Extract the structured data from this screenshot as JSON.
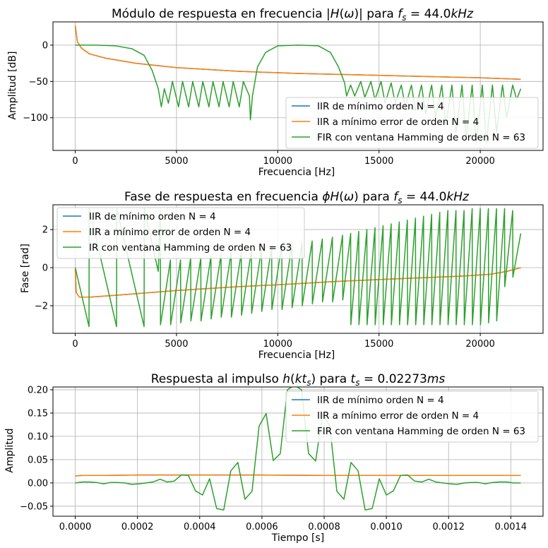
{
  "colors": {
    "s1": "#1f77b4",
    "s2": "#ff7f0e",
    "s3": "#2ca02c",
    "grid": "#b0b0b0"
  },
  "chart_data": [
    {
      "type": "line",
      "title": "Módulo de respuesta en frecuencia |H(ω)| para f_s = 44.0kHz",
      "title_parts": [
        "Módulo de respuesta en frecuencia |",
        "H",
        "(",
        "ω",
        ")| para ",
        "f",
        "s",
        " = 44.0",
        "kHz"
      ],
      "xlabel": "Frecuencia [Hz]",
      "ylabel": "Amplitud [dB]",
      "xlim": [
        -1100,
        23100
      ],
      "ylim": [
        -145,
        32
      ],
      "xticks": [
        0,
        5000,
        10000,
        15000,
        20000
      ],
      "xtick_labels": [
        "0",
        "5000",
        "10000",
        "15000",
        "20000"
      ],
      "yticks": [
        0,
        -50,
        -100
      ],
      "ytick_labels": [
        "0",
        "−50",
        "−100"
      ],
      "grid": true,
      "legend_position": "bottom-right",
      "series": [
        {
          "name": "IIR de mínimo orden N = 4",
          "color": "#1f77b4",
          "x": [
            0,
            100,
            300,
            700,
            1500,
            3000,
            5000,
            8000,
            11000,
            14000,
            17000,
            20000,
            22000
          ],
          "y": [
            27,
            5,
            -4,
            -12,
            -18,
            -25,
            -31,
            -36,
            -39,
            -41,
            -43,
            -45,
            -47
          ]
        },
        {
          "name": "IIR a mínimo error de orden N = 4",
          "color": "#ff7f0e",
          "x": [
            0,
            100,
            300,
            700,
            1500,
            3000,
            5000,
            8000,
            11000,
            14000,
            17000,
            20000,
            22000
          ],
          "y": [
            27,
            5,
            -4,
            -12,
            -18,
            -25,
            -31,
            -36,
            -39,
            -41,
            -43,
            -45,
            -47
          ]
        },
        {
          "name": "FIR con ventana Hamming de orden N = 63",
          "color": "#2ca02c",
          "x": [
            0,
            1000,
            2000,
            2800,
            3400,
            3800,
            4100,
            4250,
            4400,
            4600,
            4800,
            5100,
            5300,
            5600,
            5800,
            6100,
            6300,
            6600,
            6800,
            7100,
            7300,
            7600,
            7800,
            8100,
            8300,
            8600,
            8650,
            8750,
            9000,
            9400,
            10000,
            11000,
            12000,
            12600,
            13000,
            13300,
            13400,
            13600,
            13800,
            14100,
            14300,
            14600,
            14800,
            15100,
            15300,
            15600,
            15800,
            16100,
            16300,
            16600,
            16800,
            17100,
            17300,
            17600,
            17800,
            18100,
            18300,
            18600,
            18800,
            19100,
            19300,
            19600,
            19800,
            20100,
            20300,
            20600,
            20800,
            21100,
            21300,
            21600,
            21800,
            22000
          ],
          "y": [
            0,
            0,
            -1,
            -5,
            -14,
            -35,
            -60,
            -85,
            -60,
            -80,
            -50,
            -85,
            -50,
            -85,
            -50,
            -85,
            -50,
            -85,
            -50,
            -85,
            -50,
            -85,
            -50,
            -85,
            -50,
            -70,
            -103,
            -70,
            -30,
            -10,
            -1,
            0,
            -1,
            -10,
            -30,
            -52,
            -70,
            -55,
            -70,
            -50,
            -72,
            -50,
            -75,
            -50,
            -80,
            -52,
            -80,
            -55,
            -85,
            -55,
            -90,
            -55,
            -95,
            -55,
            -100,
            -55,
            -110,
            -55,
            -120,
            -55,
            -130,
            -55,
            -135,
            -55,
            -135,
            -55,
            -120,
            -55,
            -100,
            -55,
            -75,
            -60
          ]
        }
      ]
    },
    {
      "type": "line",
      "title": "Fase de respuesta en frecuencia ϕH(ω) para f_s = 44.0kHz",
      "title_parts": [
        "Fase de respuesta en frecuencia ",
        "ϕH",
        "(",
        "ω",
        ") para ",
        "f",
        "s",
        " = 44.0",
        "kHz"
      ],
      "xlabel": "Frecuencia [Hz]",
      "ylabel": "Fase [rad]",
      "xlim": [
        -1100,
        23100
      ],
      "ylim": [
        -3.45,
        3.3
      ],
      "xticks": [
        0,
        5000,
        10000,
        15000,
        20000
      ],
      "xtick_labels": [
        "0",
        "5000",
        "10000",
        "15000",
        "20000"
      ],
      "yticks": [
        2,
        0,
        -2
      ],
      "ytick_labels": [
        "2",
        "0",
        "−2"
      ],
      "grid": true,
      "legend_position": "top-left",
      "series": [
        {
          "name": "IIR de mínimo orden N = 4",
          "color": "#1f77b4",
          "x": [
            0,
            50,
            200,
            700,
            2000,
            5000,
            8000,
            10000,
            13000,
            16000,
            19000,
            20500,
            21300,
            22000
          ],
          "y": [
            -0.1,
            -1.3,
            -1.55,
            -1.55,
            -1.45,
            -1.2,
            -1.0,
            -0.9,
            -0.72,
            -0.58,
            -0.45,
            -0.35,
            -0.2,
            0
          ]
        },
        {
          "name": "IIR a mínimo error de orden N = 4",
          "color": "#ff7f0e",
          "x": [
            0,
            50,
            200,
            700,
            2000,
            5000,
            8000,
            10000,
            13000,
            16000,
            19000,
            20500,
            21300,
            22000
          ],
          "y": [
            -0.1,
            -1.3,
            -1.55,
            -1.55,
            -1.45,
            -1.2,
            -1.0,
            -0.9,
            -0.72,
            -0.58,
            -0.45,
            -0.35,
            -0.2,
            0
          ]
        },
        {
          "name": "IR con ventana Hamming de orden N = 63",
          "color": "#2ca02c",
          "x": [
            0,
            680,
            690,
            2040,
            2050,
            3400,
            3410,
            4100,
            4200,
            4210,
            4700,
            4710,
            5200,
            5210,
            5700,
            5710,
            6200,
            6210,
            6700,
            6710,
            7200,
            7210,
            7700,
            7710,
            8200,
            8210,
            8700,
            8710,
            9200,
            9210,
            9700,
            9710,
            10200,
            10210,
            10700,
            10710,
            11200,
            11210,
            11700,
            11710,
            12200,
            12210,
            12700,
            12710,
            13200,
            13210,
            13600,
            13610,
            14000,
            14010,
            14400,
            14410,
            14800,
            14810,
            15200,
            15210,
            15600,
            15610,
            16000,
            16010,
            16400,
            16410,
            16800,
            16810,
            17200,
            17210,
            17600,
            17610,
            18000,
            18010,
            18400,
            18410,
            18800,
            18810,
            19200,
            19210,
            19600,
            19610,
            20000,
            20010,
            20400,
            20410,
            20800,
            20810,
            21200,
            21210,
            21600,
            21610,
            22000
          ],
          "y": [
            0,
            -3.1,
            3.1,
            -3.1,
            3.1,
            -3.1,
            3.1,
            -0.2,
            3.0,
            -3.0,
            0.4,
            -3.0,
            0.4,
            -2.9,
            0.5,
            -2.8,
            0.5,
            -2.8,
            0.6,
            -2.7,
            0.7,
            -2.6,
            0.8,
            -2.6,
            0.8,
            -2.5,
            0.9,
            -2.4,
            1.0,
            -2.3,
            1.1,
            -2.2,
            1.2,
            -2.2,
            1.2,
            -2.1,
            1.3,
            -2.0,
            1.4,
            -1.9,
            1.5,
            -1.8,
            1.6,
            -1.8,
            1.7,
            -1.7,
            1.8,
            -3.0,
            1.9,
            -3.0,
            2.0,
            -3.0,
            2.1,
            -3.0,
            2.2,
            -3.0,
            2.3,
            -3.0,
            2.4,
            -3.0,
            2.5,
            -3.0,
            2.6,
            -3.0,
            2.7,
            -3.0,
            2.8,
            -3.0,
            2.9,
            -3.0,
            3.0,
            -3.0,
            3.0,
            -3.0,
            3.0,
            -3.0,
            3.1,
            -3.0,
            3.1,
            -3.0,
            3.1,
            -2.9,
            3.1,
            -2.8,
            3.1,
            -1.0,
            3.0,
            -0.5,
            1.8
          ]
        }
      ]
    },
    {
      "type": "line",
      "title": "Respuesta al impulso h(kt_s) para t_s = 0.02273ms",
      "title_parts": [
        "Respuesta al impulso ",
        "h",
        "(",
        "kt",
        "s",
        ") para ",
        "t",
        "s",
        " = 0.02273",
        "ms"
      ],
      "xlabel": "Tiempo [s]",
      "ylabel": "Amplitud",
      "xlim": [
        -7.16e-05,
        0.00150366
      ],
      "ylim": [
        -0.0715,
        0.206
      ],
      "xticks": [
        0,
        0.0002,
        0.0004,
        0.0006,
        0.0008,
        0.001,
        0.0012,
        0.0014
      ],
      "xtick_labels": [
        "0.0000",
        "0.0002",
        "0.0004",
        "0.0006",
        "0.0008",
        "0.0010",
        "0.0012",
        "0.0014"
      ],
      "yticks": [
        0.2,
        0.15,
        0.1,
        0.05,
        0.0,
        -0.05
      ],
      "ytick_labels": [
        "0.20",
        "0.15",
        "0.10",
        "0.05",
        "0.00",
        "−0.05"
      ],
      "grid": true,
      "legend_position": "top-right",
      "series": [
        {
          "name": "IIR de mínimo orden N = 4",
          "color": "#1f77b4",
          "x": [
            0,
            2.273e-05,
            0.0001,
            0.0002,
            0.0004,
            0.0006,
            0.0008,
            0.001,
            0.0012,
            0.001432
          ],
          "y": [
            0.015,
            0.016,
            0.016,
            0.017,
            0.017,
            0.017,
            0.016,
            0.016,
            0.016,
            0.016
          ]
        },
        {
          "name": "IIR a mínimo error de orden N = 4",
          "color": "#ff7f0e",
          "x": [
            0,
            2.273e-05,
            0.0001,
            0.0002,
            0.0004,
            0.0006,
            0.0008,
            0.001,
            0.0012,
            0.001432
          ],
          "y": [
            0.015,
            0.016,
            0.016,
            0.017,
            0.017,
            0.017,
            0.016,
            0.016,
            0.016,
            0.016
          ]
        },
        {
          "name": "FIR con ventana Hamming de orden N = 63",
          "color": "#2ca02c",
          "x": [
            0,
            2.27e-05,
            4.55e-05,
            6.82e-05,
            9.09e-05,
            0.0001136,
            0.0001364,
            0.0001591,
            0.0001818,
            0.0002045,
            0.0002273,
            0.00025,
            0.0002727,
            0.0002955,
            0.0003182,
            0.0003409,
            0.0003636,
            0.0003864,
            0.0004091,
            0.0004318,
            0.0004545,
            0.0004773,
            0.0005,
            0.0005227,
            0.0005455,
            0.0005682,
            0.0005909,
            0.0006136,
            0.0006364,
            0.0006591,
            0.0006818,
            0.0007045,
            0.0007273,
            0.00075,
            0.0007727,
            0.0007955,
            0.0008182,
            0.0008409,
            0.0008636,
            0.0008864,
            0.0009091,
            0.0009318,
            0.0009545,
            0.0009773,
            0.001,
            0.0010227,
            0.0010455,
            0.0010682,
            0.0010909,
            0.0011136,
            0.0011364,
            0.0011591,
            0.0011818,
            0.0012045,
            0.0012273,
            0.00125,
            0.0012727,
            0.0012955,
            0.0013182,
            0.0013409,
            0.0013636,
            0.0013864,
            0.0014091,
            0.0014318
          ],
          "y": [
            0,
            0.002,
            0.002,
            0.001,
            -0.002,
            0.001,
            0.001,
            0.0,
            -0.003,
            -0.002,
            0.0,
            0.002,
            0.008,
            0.002,
            0.004,
            0.017,
            0.016,
            -0.017,
            -0.026,
            0.009,
            -0.055,
            -0.058,
            0.026,
            0.044,
            -0.035,
            -0.018,
            0.122,
            0.149,
            0.048,
            0.063,
            0.2,
            0.21,
            0.2,
            0.063,
            0.047,
            0.149,
            0.122,
            -0.018,
            -0.035,
            0.044,
            0.026,
            -0.058,
            -0.055,
            0.009,
            -0.026,
            -0.017,
            0.016,
            0.017,
            0.004,
            0.002,
            0.008,
            0.002,
            0.0,
            -0.002,
            -0.003,
            0.0,
            0.001,
            0.001,
            -0.002,
            0.001,
            0.002,
            0.002,
            0.0,
            0.0
          ]
        }
      ]
    }
  ]
}
